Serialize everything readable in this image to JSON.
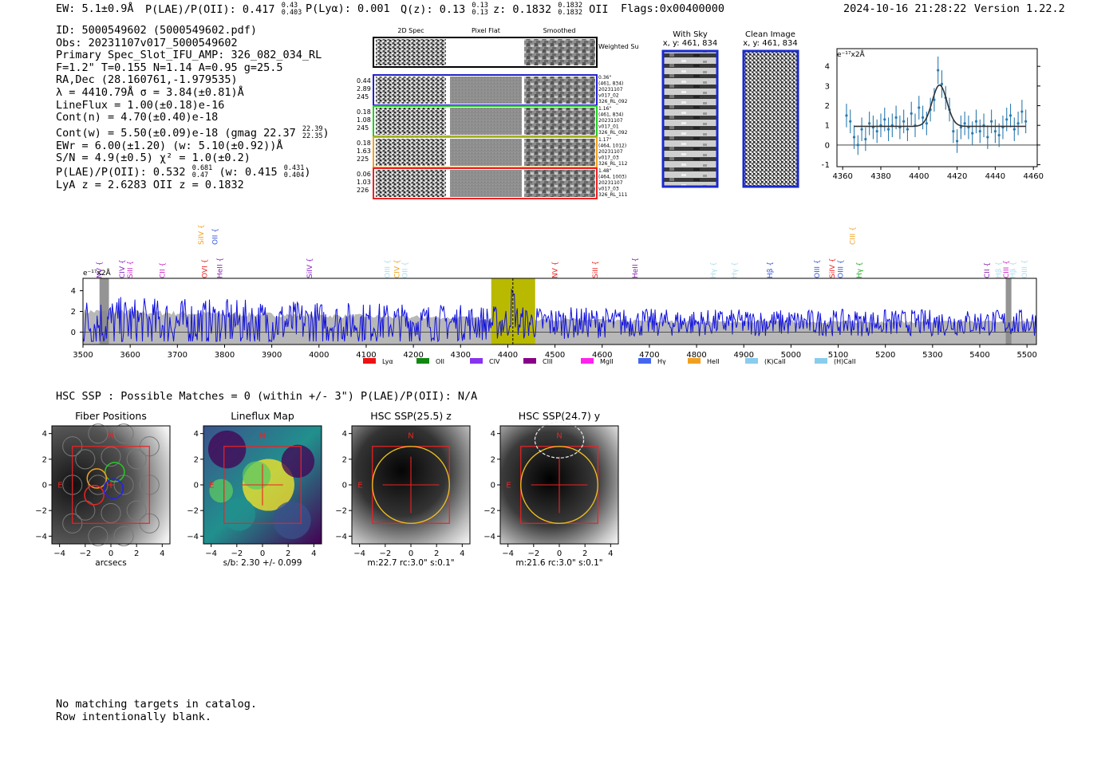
{
  "header": {
    "ew_label": "EW: 5.1±0.9Å",
    "plae_label": "P(LAE)/P(OII): 0.417",
    "plae_hi": "0.43",
    "plae_lo": "0.403",
    "plya_label": "P(Lyα): 0.001",
    "qz_label": "Q(z): 0.13",
    "qz_hi": "0.13",
    "qz_lo": "0.13",
    "z_label": "z: 0.1832",
    "z_hi": "0.1832",
    "z_lo": "0.1832",
    "z_line": "OII",
    "flags": "Flags:0x00400000",
    "datetime": "2024-10-16 21:28:22",
    "version": "Version 1.22.2"
  },
  "info": {
    "id": "ID: 5000549602 (5000549602.pdf)",
    "obs": "Obs: 20231107v017_5000549602",
    "primary": "Primary Spec_Slot_IFU_AMP: 326_082_034_RL",
    "fit": "F=1.2\"  T=0.155  N=1.14  A=0.95  g=25.5",
    "radec": "RA,Dec (28.160761,-1.979535)",
    "lambda": "λ = 4410.79Å  σ = 3.84(±0.81)Å",
    "lineflux": "LineFlux = 1.00(±0.18)e-16",
    "contn": "Cont(n) = 4.70(±0.40)e-18",
    "contw": "Cont(w) = 5.50(±0.09)e-18 (gmag 22.37",
    "contw_hi": "22.39",
    "contw_lo": "22.35",
    "contw_end": ")",
    "ewr": "EWr = 6.00(±1.20) (w: 5.10(±0.92))Å",
    "sn": "S/N = 4.9(±0.5)  χ² = 1.0(±0.2)",
    "plae2": "P(LAE)/P(OII): 0.532",
    "plae2_hi": "0.681",
    "plae2_lo": "0.47",
    "plae2_w": "(w: 0.415",
    "plae2_w_hi": "0.431",
    "plae2_w_lo": "0.404",
    "plae2_end": ")",
    "lyaz": "LyA z = 2.6283  OII z = 0.1832"
  },
  "cutouts": {
    "col_labels": [
      "2D Spec",
      "Pixel Flat",
      "Smoothed"
    ],
    "weighted_sum": "Weighted Sum",
    "rows": [
      {
        "left": [
          "0.44",
          "2.89",
          "245"
        ],
        "right": [
          "0.36\"",
          "(461, 834)",
          "20231107",
          "v017_02",
          "326_RL_092"
        ],
        "color": "#2222cc"
      },
      {
        "left": [
          "0.18",
          "1.08",
          "245"
        ],
        "right": [
          "1.16\"",
          "(461, 834)",
          "20231107",
          "v017_01",
          "326_RL_092"
        ],
        "color": "#22cc22"
      },
      {
        "left": [
          "0.18",
          "1.63",
          "225"
        ],
        "right": [
          "1.17\"",
          "(464, 1012)",
          "20231107",
          "v017_03",
          "326_RL_112"
        ],
        "color": "#f0a020"
      },
      {
        "left": [
          "0.06",
          "1.03",
          "226"
        ],
        "right": [
          "1.48\"",
          "(464, 1003)",
          "20231107",
          "v017_03",
          "326_RL_111"
        ],
        "color": "#ee2222"
      }
    ],
    "with_sky_title": "With Sky",
    "with_sky_xy": "x, y: 461, 834",
    "clean_title": "Clean Image",
    "clean_xy": "x, y: 461, 834"
  },
  "line_labels": {
    "upper": [
      {
        "name": "SiIV",
        "w": 3750,
        "color": "#f0a020"
      },
      {
        "name": "OII",
        "w": 3780,
        "color": "#3355dd"
      },
      {
        "name": "CIII",
        "w": 5130,
        "color": "#f0a020"
      }
    ],
    "lower": [
      {
        "name": "NV",
        "w": 3535,
        "color": "#8822cc"
      },
      {
        "name": "CIV",
        "w": 3583,
        "color": "#8822cc"
      },
      {
        "name": "SiII",
        "w": 3600,
        "color": "#cc22cc"
      },
      {
        "name": "CII",
        "w": 3668,
        "color": "#cc22cc"
      },
      {
        "name": "OVI",
        "w": 3758,
        "color": "#ee2222"
      },
      {
        "name": "HeII",
        "w": 3790,
        "color": "#8822aa"
      },
      {
        "name": "SiIV",
        "w": 3980,
        "color": "#8822cc"
      },
      {
        "name": "OIII",
        "w": 4145,
        "color": "#aaddee"
      },
      {
        "name": "CIV",
        "w": 4165,
        "color": "#f0a020"
      },
      {
        "name": "OII",
        "w": 4182,
        "color": "#aaddee"
      },
      {
        "name": "NV",
        "w": 4500,
        "color": "#ee2222"
      },
      {
        "name": "SiII",
        "w": 4585,
        "color": "#ee2222"
      },
      {
        "name": "HeII",
        "w": 4670,
        "color": "#8822aa"
      },
      {
        "name": "Hγ",
        "w": 4835,
        "color": "#aaddee"
      },
      {
        "name": "Hγ",
        "w": 4880,
        "color": "#aaddee"
      },
      {
        "name": "Hβ",
        "w": 4955,
        "color": "#3355dd"
      },
      {
        "name": "OIII",
        "w": 5055,
        "color": "#3355dd"
      },
      {
        "name": "SiIV",
        "w": 5087,
        "color": "#ee2222"
      },
      {
        "name": "OIII",
        "w": 5105,
        "color": "#3355dd"
      },
      {
        "name": "Hγ",
        "w": 5145,
        "color": "#22aa22"
      },
      {
        "name": "CII",
        "w": 5415,
        "color": "#8822aa"
      },
      {
        "name": "Hβ",
        "w": 5440,
        "color": "#aaddee"
      },
      {
        "name": "CIII",
        "w": 5456,
        "color": "#cc22cc"
      },
      {
        "name": "Hβ",
        "w": 5470,
        "color": "#aaddee"
      },
      {
        "name": "OIII",
        "w": 5495,
        "color": "#aaddee"
      }
    ]
  },
  "legend": [
    {
      "name": "Lyα",
      "color": "#ee1111"
    },
    {
      "name": "OII",
      "color": "#118811"
    },
    {
      "name": "CIV",
      "color": "#8833ee"
    },
    {
      "name": "CIII",
      "color": "#880088"
    },
    {
      "name": "MgII",
      "color": "#ff22ee"
    },
    {
      "name": "Hγ",
      "color": "#4466ee"
    },
    {
      "name": "HeII",
      "color": "#f0a020"
    },
    {
      "name": "(K)CaII",
      "color": "#88ccee"
    },
    {
      "name": "(H)CaII",
      "color": "#88ccee"
    }
  ],
  "chart_data": [
    {
      "type": "scatter",
      "subtype": "errorbar_with_gaussian_fit",
      "ylabel": "e⁻¹⁷x2Å",
      "xlim": [
        4357,
        4462
      ],
      "ylim": [
        -1.1,
        4.9
      ],
      "xticks": [
        4360,
        4380,
        4400,
        4420,
        4440,
        4460
      ],
      "yticks": [
        -1,
        0,
        1,
        2,
        3,
        4
      ],
      "x": [
        4362,
        4364,
        4366,
        4368,
        4370,
        4372,
        4374,
        4376,
        4378,
        4380,
        4382,
        4384,
        4386,
        4388,
        4390,
        4392,
        4394,
        4396,
        4398,
        4400,
        4402,
        4404,
        4406,
        4408,
        4410,
        4412,
        4414,
        4416,
        4418,
        4420,
        4422,
        4424,
        4426,
        4428,
        4430,
        4432,
        4434,
        4436,
        4438,
        4440,
        4442,
        4444,
        4446,
        4448,
        4450,
        4452,
        4454,
        4456
      ],
      "y": [
        1.5,
        1.2,
        0.4,
        0.0,
        0.8,
        0.3,
        1.1,
        0.9,
        0.7,
        1.0,
        1.3,
        0.8,
        1.0,
        1.4,
        0.9,
        1.2,
        0.8,
        1.6,
        1.0,
        1.9,
        1.4,
        1.1,
        1.8,
        2.3,
        3.8,
        3.1,
        2.4,
        1.8,
        0.7,
        0.2,
        0.9,
        1.1,
        0.9,
        0.6,
        1.2,
        0.7,
        1.0,
        0.4,
        1.2,
        0.7,
        0.5,
        0.9,
        1.3,
        1.5,
        0.8,
        1.1,
        1.7,
        1.2
      ],
      "yerr": [
        0.6,
        0.6,
        0.6,
        0.5,
        0.6,
        0.6,
        0.6,
        0.6,
        0.6,
        0.6,
        0.6,
        0.6,
        0.6,
        0.6,
        0.6,
        0.6,
        0.6,
        0.6,
        0.6,
        0.6,
        0.6,
        0.6,
        0.6,
        0.6,
        0.7,
        0.7,
        0.6,
        0.6,
        0.6,
        0.6,
        0.6,
        0.6,
        0.6,
        0.6,
        0.6,
        0.6,
        0.6,
        0.6,
        0.6,
        0.6,
        0.6,
        0.6,
        0.6,
        0.6,
        0.6,
        0.6,
        0.6,
        0.6
      ],
      "fit": {
        "center": 4410.79,
        "sigma": 3.84,
        "amplitude": 2.1,
        "continuum": 0.95,
        "x_range": [
          4366,
          4456
        ]
      },
      "colors": {
        "points": "#2a7ab0",
        "fit": "#333333"
      }
    },
    {
      "type": "line",
      "ylabel": "e⁻¹⁷x2Å",
      "xlim": [
        3500,
        5520
      ],
      "ylim": [
        -1.2,
        5.2
      ],
      "xticks": [
        3500,
        3600,
        3700,
        3800,
        3900,
        4000,
        4100,
        4200,
        4300,
        4400,
        4500,
        4600,
        4700,
        4800,
        4900,
        5000,
        5100,
        5200,
        5300,
        5400,
        5500
      ],
      "yticks": [
        0,
        2,
        4
      ],
      "highlight_band": [
        4365,
        4458
      ],
      "line_center": 4410.79,
      "masked_bands": [
        [
          3535,
          3555
        ],
        [
          5455,
          5467
        ]
      ],
      "noise_level_start": 2.0,
      "noise_level_end": 1.0,
      "colors": {
        "flux": "#1111dd",
        "error_band": "#b8b8b8",
        "highlight": "#b9b900"
      }
    }
  ],
  "hsc": {
    "summary": "HSC SSP : Possible Matches = 0 (within +/- 3\")  P(LAE)/P(OII): N/A",
    "panels": [
      {
        "title": "Fiber Positions",
        "caption": "arcsecs"
      },
      {
        "title": "Lineflux Map",
        "caption": "s/b: 2.30 +/- 0.099"
      },
      {
        "title": "HSC SSP(25.5) z",
        "caption": "m:22.7 rc:3.0\"  s:0.1\""
      },
      {
        "title": "HSC SSP(24.7) y",
        "caption": "m:21.6 rc:3.0\"  s:0.1\""
      }
    ],
    "ticks": [
      "4",
      "2",
      "0",
      "−2",
      "−4"
    ],
    "xticks": [
      "−4",
      "−2",
      "0",
      "2",
      "4"
    ],
    "north": "N",
    "east": "E"
  },
  "footer": {
    "line1": "No matching targets in catalog.",
    "line2": "Row intentionally blank."
  }
}
